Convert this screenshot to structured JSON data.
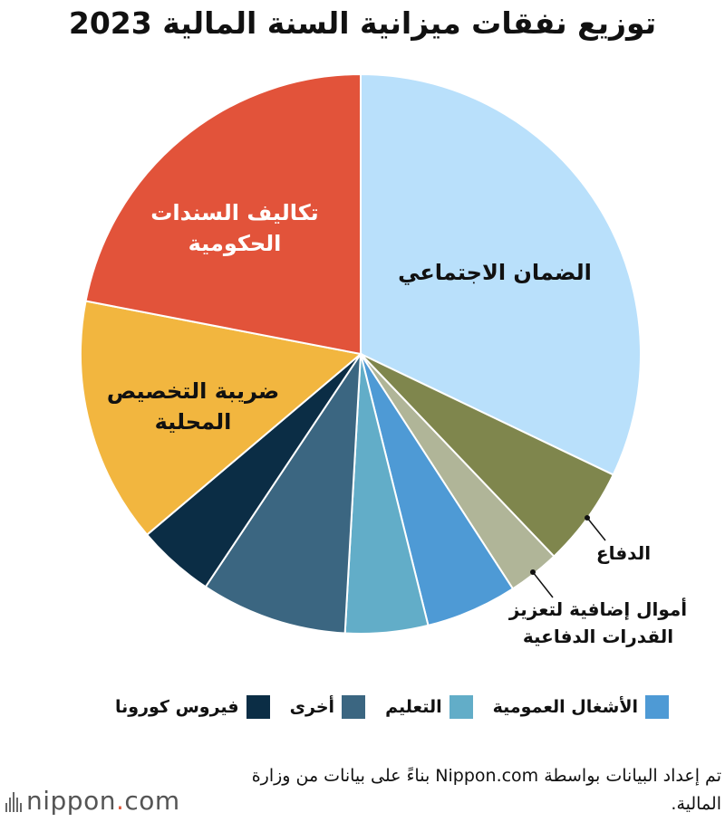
{
  "chart_data": {
    "type": "pie",
    "title": "توزيع نفقات ميزانية السنة المالية 2023",
    "slices": [
      {
        "label": "الضمان الاجتماعي",
        "value": 32.3,
        "color": "#b9e0fb"
      },
      {
        "label": "الدفاع",
        "value": 5.8,
        "color": "#7f864d"
      },
      {
        "label": "أموال إضافية لتعزيز القدرات الدفاعية",
        "value": 3.0,
        "color": "#b0b598"
      },
      {
        "label": "الأشغال العمومية",
        "value": 5.3,
        "color": "#4e9ad5"
      },
      {
        "label": "التعليم",
        "value": 4.8,
        "color": "#62adc8"
      },
      {
        "label": "أخرى",
        "value": 8.5,
        "color": "#3b6681"
      },
      {
        "label": "فيروس كورونا",
        "value": 4.5,
        "color": "#0b2d45"
      },
      {
        "label": "ضريبة التخصيص المحلية",
        "value": 14.3,
        "color": "#f2b63f"
      },
      {
        "label": "تكاليف السندات الحكومية",
        "value": 22.1,
        "color": "#e2533a"
      }
    ],
    "in_slice_labels": [
      {
        "lines": [
          "الضمان الاجتماعي"
        ]
      },
      {
        "lines": [
          "تكاليف السندات",
          "الحكومية"
        ]
      },
      {
        "lines": [
          "ضريبة التخصيص",
          "المحلية"
        ]
      }
    ],
    "callouts": [
      {
        "lines": [
          "الدفاع"
        ]
      },
      {
        "lines": [
          "أموال إضافية لتعزيز",
          "القدرات الدفاعية"
        ]
      }
    ],
    "legend": [
      {
        "label": "الأشغال العمومية",
        "color": "#4e9ad5"
      },
      {
        "label": "التعليم",
        "color": "#62adc8"
      },
      {
        "label": "أخرى",
        "color": "#3b6681"
      },
      {
        "label": "فيروس كورونا",
        "color": "#0b2d45"
      }
    ]
  },
  "source_note": "تم إعداد البيانات بواسطة Nippon.com بناءً على بيانات من وزارة المالية.",
  "logo": {
    "brand": "nippon",
    "dot": ".",
    "suffix": "com"
  }
}
